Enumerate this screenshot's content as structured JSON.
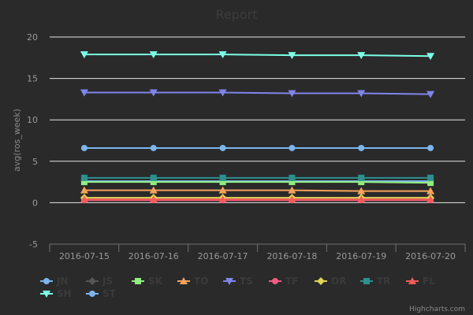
{
  "chart_data": {
    "type": "line",
    "title": "Report",
    "ylabel": "avg(ros_week)",
    "ylim": [
      -5,
      20
    ],
    "yticks": [
      -5,
      0,
      5,
      10,
      15,
      20
    ],
    "categories": [
      "2016-07-15",
      "2016-07-16",
      "2016-07-17",
      "2016-07-18",
      "2016-07-19",
      "2016-07-20"
    ],
    "grid": true,
    "legend_position": "bottom",
    "series": [
      {
        "name": "JN",
        "color": "#7cb5ec",
        "marker": "circle",
        "values": [
          2.6,
          2.6,
          2.6,
          2.6,
          2.6,
          2.6
        ]
      },
      {
        "name": "JS",
        "color": "#555555",
        "marker": "diamond",
        "values": [
          0.5,
          0.5,
          0.5,
          0.5,
          0.5,
          0.5
        ]
      },
      {
        "name": "SK",
        "color": "#90ee7e",
        "marker": "square",
        "values": [
          2.5,
          2.5,
          2.5,
          2.5,
          2.5,
          2.4
        ]
      },
      {
        "name": "TO",
        "color": "#f7a35c",
        "marker": "triangle",
        "values": [
          1.5,
          1.5,
          1.5,
          1.5,
          1.4,
          1.4
        ]
      },
      {
        "name": "TS",
        "color": "#8085e9",
        "marker": "triangle-down",
        "values": [
          13.3,
          13.3,
          13.3,
          13.2,
          13.2,
          13.1
        ]
      },
      {
        "name": "TF",
        "color": "#f15c80",
        "marker": "circle",
        "values": [
          0.3,
          0.3,
          0.3,
          0.3,
          0.3,
          0.3
        ]
      },
      {
        "name": "OR",
        "color": "#e4d354",
        "marker": "diamond",
        "values": [
          0.6,
          0.6,
          0.6,
          0.6,
          0.6,
          0.6
        ]
      },
      {
        "name": "TR",
        "color": "#2b908f",
        "marker": "square",
        "values": [
          3.0,
          3.0,
          3.0,
          3.0,
          3.0,
          3.0
        ]
      },
      {
        "name": "FL",
        "color": "#f45b5b",
        "marker": "triangle",
        "values": [
          0.4,
          0.4,
          0.4,
          0.4,
          0.4,
          0.4
        ]
      },
      {
        "name": "SH",
        "color": "#7cffe6",
        "marker": "triangle-down",
        "values": [
          17.9,
          17.9,
          17.9,
          17.8,
          17.8,
          17.7
        ]
      },
      {
        "name": "ST",
        "color": "#7cb5ec",
        "marker": "circle",
        "values": [
          6.6,
          6.6,
          6.6,
          6.6,
          6.6,
          6.6
        ]
      }
    ],
    "credits": "Highcharts.com"
  }
}
